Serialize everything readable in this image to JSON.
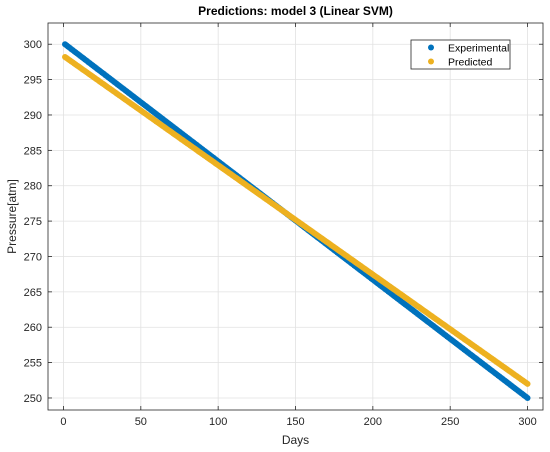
{
  "chart_data": {
    "type": "scatter",
    "title": "Predictions: model 3 (Linear SVM)",
    "xlabel": "Days",
    "ylabel": "Pressure[atm]",
    "xlim": [
      -10,
      310
    ],
    "ylim": [
      248.3,
      303
    ],
    "xticks": [
      "0",
      "50",
      "100",
      "150",
      "200",
      "250",
      "300"
    ],
    "yticks": [
      "250",
      "255",
      "260",
      "265",
      "270",
      "275",
      "280",
      "285",
      "290",
      "295",
      "300"
    ],
    "grid": true,
    "legend_position": "top-right",
    "x": {
      "start": 1,
      "end": 300,
      "step": 1
    },
    "series": [
      {
        "name": "Experimental",
        "color": "#0072BD",
        "start_value": 300.0,
        "end_value": 250.0
      },
      {
        "name": "Predicted",
        "color": "#EDB120",
        "start_value": 298.2,
        "end_value": 252.0
      }
    ]
  }
}
